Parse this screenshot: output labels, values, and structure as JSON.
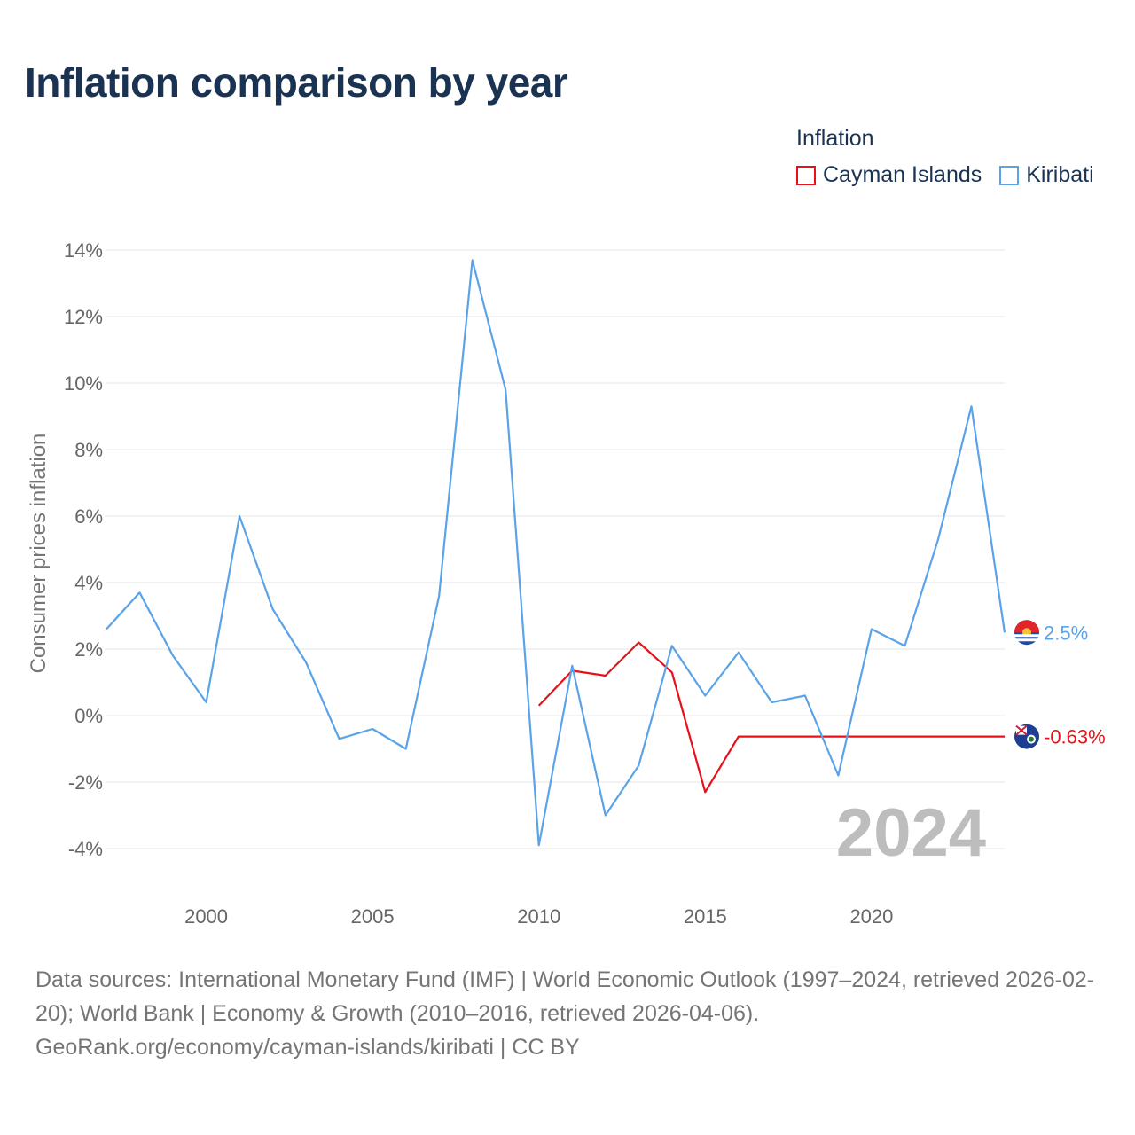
{
  "chart_data": {
    "type": "line",
    "title": "Inflation comparison by year",
    "legend_title": "Inflation",
    "ylabel": "Consumer prices inflation",
    "xlabel": "",
    "xlim": [
      1997,
      2024
    ],
    "ylim": [
      -4,
      14
    ],
    "x_ticks": [
      2000,
      2005,
      2010,
      2015,
      2020
    ],
    "y_ticks": [
      -4,
      -2,
      0,
      2,
      4,
      6,
      8,
      10,
      12,
      14
    ],
    "y_tick_labels": [
      "-4%",
      "-2%",
      "0%",
      "2%",
      "4%",
      "6%",
      "8%",
      "10%",
      "12%",
      "14%"
    ],
    "year_watermark": "2024",
    "legend_placement": "top-right",
    "series": [
      {
        "name": "Cayman Islands",
        "color": "#e8111a",
        "flag_icon": "cayman-islands-flag-icon",
        "end_label": "-0.63%",
        "end_value": -0.63,
        "x": [
          2010,
          2011,
          2012,
          2013,
          2014,
          2015,
          2016,
          2017,
          2018,
          2019,
          2020,
          2021,
          2022,
          2023,
          2024
        ],
        "values": [
          0.3,
          1.35,
          1.2,
          2.2,
          1.3,
          -2.3,
          -0.63,
          -0.63,
          -0.63,
          -0.63,
          -0.63,
          -0.63,
          -0.63,
          -0.63,
          -0.63
        ]
      },
      {
        "name": "Kiribati",
        "color": "#5aa3e8",
        "flag_icon": "kiribati-flag-icon",
        "end_label": "2.5%",
        "end_value": 2.5,
        "x": [
          1997,
          1998,
          1999,
          2000,
          2001,
          2002,
          2003,
          2004,
          2005,
          2006,
          2007,
          2008,
          2009,
          2010,
          2011,
          2012,
          2013,
          2014,
          2015,
          2016,
          2017,
          2018,
          2019,
          2020,
          2021,
          2022,
          2023,
          2024
        ],
        "values": [
          2.6,
          3.7,
          1.8,
          0.4,
          6.0,
          3.2,
          1.6,
          -0.7,
          -0.4,
          -1.0,
          3.6,
          13.7,
          9.8,
          -3.9,
          1.5,
          -3.0,
          -1.5,
          2.1,
          0.6,
          1.9,
          0.4,
          0.6,
          -1.8,
          2.6,
          2.1,
          5.3,
          9.3,
          2.5
        ]
      }
    ]
  },
  "footer": {
    "sources": "Data sources: International Monetary Fund (IMF) | World Economic Outlook (1997–2024, retrieved 2026-02-20); World Bank | Economy & Growth (2010–2016, retrieved 2026-04-06).",
    "credit": "GeoRank.org/economy/cayman-islands/kiribati | CC BY"
  }
}
